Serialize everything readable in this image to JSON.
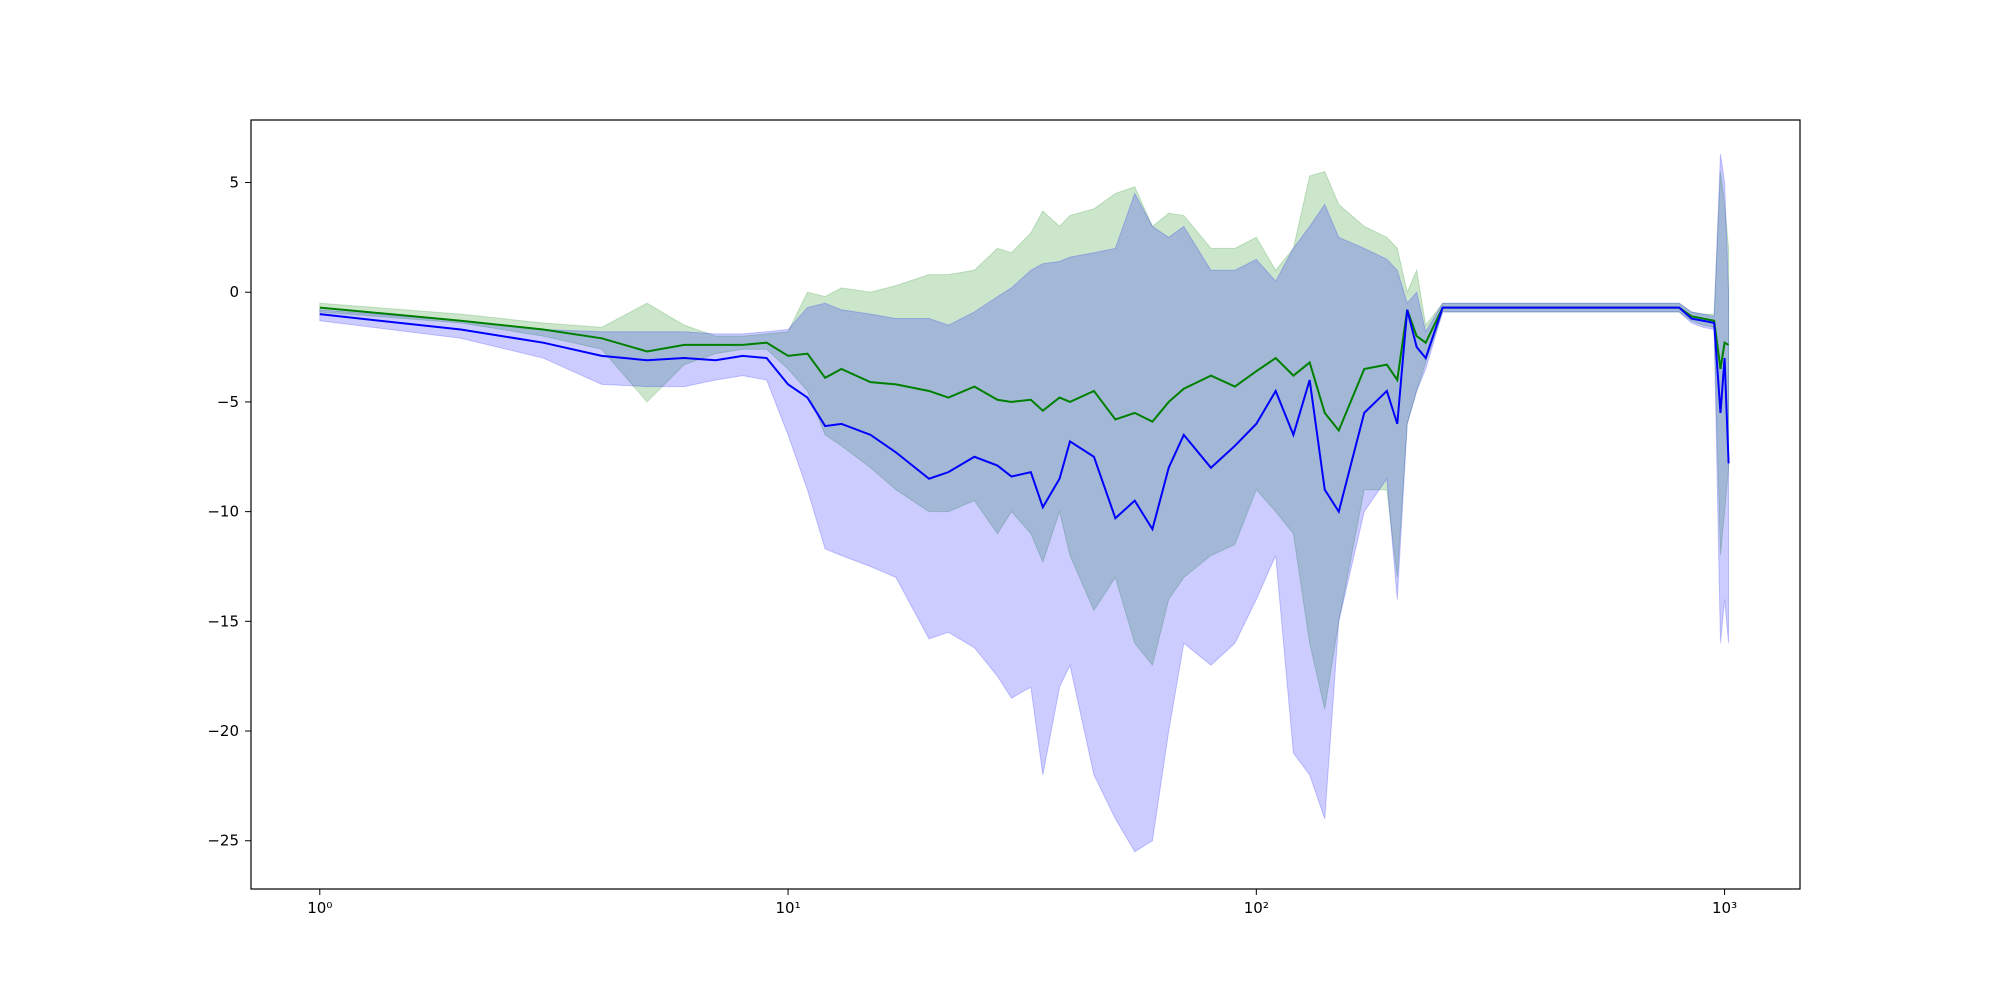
{
  "chart_data": {
    "type": "line_band",
    "x": [
      1,
      2,
      3,
      4,
      5,
      6,
      7,
      8,
      9,
      10,
      11,
      12,
      13,
      15,
      17,
      20,
      22,
      25,
      28,
      30,
      33,
      35,
      38,
      40,
      45,
      50,
      55,
      60,
      65,
      70,
      80,
      90,
      100,
      110,
      120,
      130,
      140,
      150,
      170,
      190,
      200,
      210,
      220,
      230,
      250,
      300,
      400,
      500,
      600,
      700,
      800,
      850,
      900,
      950,
      980,
      1000,
      1020
    ],
    "series": [
      {
        "color": "#008000",
        "values": [
          -0.7,
          -1.3,
          -1.7,
          -2.1,
          -2.7,
          -2.4,
          -2.4,
          -2.4,
          -2.3,
          -2.9,
          -2.8,
          -3.9,
          -3.5,
          -4.1,
          -4.2,
          -4.5,
          -4.8,
          -4.3,
          -4.9,
          -5.0,
          -4.9,
          -5.4,
          -4.8,
          -5.0,
          -4.5,
          -5.8,
          -5.5,
          -5.9,
          -5.0,
          -4.4,
          -3.8,
          -4.3,
          -3.6,
          -3.0,
          -3.8,
          -3.2,
          -5.5,
          -6.3,
          -3.5,
          -3.3,
          -4.0,
          -0.8,
          -2.0,
          -2.3,
          -0.7,
          -0.7,
          -0.7,
          -0.7,
          -0.7,
          -0.7,
          -0.7,
          -1.1,
          -1.2,
          -1.3,
          -3.5,
          -2.3,
          -2.4
        ],
        "lower": [
          -0.9,
          -1.4,
          -2.0,
          -2.6,
          -5.0,
          -3.3,
          -2.8,
          -2.6,
          -2.6,
          -3.5,
          -4.5,
          -6.5,
          -7.0,
          -8.0,
          -9.0,
          -10.0,
          -10.0,
          -9.5,
          -11.0,
          -10.0,
          -11.0,
          -12.3,
          -10.0,
          -12.0,
          -14.5,
          -13.0,
          -16.0,
          -17.0,
          -14.0,
          -13.0,
          -12.0,
          -11.5,
          -9.0,
          -10.0,
          -11.0,
          -16.0,
          -19.0,
          -15.0,
          -9.0,
          -9.0,
          -13.0,
          -6.0,
          -4.5,
          -3.2,
          -0.9,
          -0.9,
          -0.9,
          -0.9,
          -0.9,
          -0.9,
          -0.9,
          -1.3,
          -1.5,
          -1.6,
          -12.0,
          -10.0,
          -8.0
        ],
        "upper": [
          -0.5,
          -1.0,
          -1.4,
          -1.6,
          -0.5,
          -1.5,
          -2.0,
          -2.0,
          -1.9,
          -1.8,
          0.0,
          -0.2,
          0.2,
          0.0,
          0.3,
          0.8,
          0.8,
          1.0,
          2.0,
          1.8,
          2.7,
          3.7,
          3.0,
          3.5,
          3.8,
          4.5,
          4.8,
          3.0,
          3.6,
          3.5,
          2.0,
          2.0,
          2.5,
          1.0,
          2.0,
          5.3,
          5.5,
          4.0,
          3.0,
          2.5,
          2.0,
          0.0,
          1.0,
          -1.5,
          -0.5,
          -0.5,
          -0.5,
          -0.5,
          -0.5,
          -0.5,
          -0.5,
          -0.9,
          -1.0,
          -1.0,
          5.5,
          4.0,
          2.0
        ]
      },
      {
        "color": "#0000ff",
        "values": [
          -1.0,
          -1.7,
          -2.3,
          -2.9,
          -3.1,
          -3.0,
          -3.1,
          -2.9,
          -3.0,
          -4.2,
          -4.8,
          -6.1,
          -6.0,
          -6.5,
          -7.3,
          -8.5,
          -8.2,
          -7.5,
          -7.9,
          -8.4,
          -8.2,
          -9.8,
          -8.5,
          -6.8,
          -7.5,
          -10.3,
          -9.5,
          -10.8,
          -8.0,
          -6.5,
          -8.0,
          -7.0,
          -6.0,
          -4.5,
          -6.5,
          -4.0,
          -9.0,
          -10.0,
          -5.5,
          -4.5,
          -6.0,
          -0.8,
          -2.5,
          -3.0,
          -0.7,
          -0.7,
          -0.7,
          -0.7,
          -0.7,
          -0.7,
          -0.7,
          -1.2,
          -1.3,
          -1.4,
          -5.5,
          -3.0,
          -7.8
        ],
        "lower": [
          -1.3,
          -2.1,
          -3.0,
          -4.2,
          -4.3,
          -4.3,
          -4.0,
          -3.8,
          -4.0,
          -6.5,
          -9.0,
          -11.7,
          -12.0,
          -12.5,
          -13.0,
          -15.8,
          -15.5,
          -16.2,
          -17.5,
          -18.5,
          -18.0,
          -22.0,
          -18.0,
          -17.0,
          -22.0,
          -24.0,
          -25.5,
          -25.0,
          -20.0,
          -16.0,
          -17.0,
          -16.0,
          -14.0,
          -12.0,
          -21.0,
          -22.0,
          -24.0,
          -15.0,
          -10.0,
          -8.5,
          -14.0,
          -6.0,
          -4.5,
          -3.5,
          -0.9,
          -0.9,
          -0.9,
          -0.9,
          -0.9,
          -0.9,
          -0.9,
          -1.4,
          -1.6,
          -1.7,
          -16.0,
          -14.0,
          -16.0
        ],
        "upper": [
          -0.8,
          -1.3,
          -1.7,
          -1.8,
          -1.8,
          -1.8,
          -1.9,
          -1.9,
          -1.8,
          -1.7,
          -0.7,
          -0.5,
          -0.8,
          -1.0,
          -1.2,
          -1.2,
          -1.5,
          -0.9,
          -0.2,
          0.2,
          1.0,
          1.3,
          1.4,
          1.6,
          1.8,
          2.0,
          4.5,
          3.0,
          2.5,
          3.0,
          1.0,
          1.0,
          1.5,
          0.5,
          2.0,
          3.0,
          4.0,
          2.5,
          2.0,
          1.5,
          1.0,
          -0.5,
          0.0,
          -1.8,
          -0.5,
          -0.5,
          -0.5,
          -0.5,
          -0.5,
          -0.5,
          -0.5,
          -0.9,
          -1.0,
          -1.1,
          6.3,
          5.0,
          0.0
        ]
      }
    ],
    "xscale": "log",
    "xlim": [
      0.713,
      1449
    ],
    "ylim": [
      -27.2,
      7.85
    ],
    "xticks": [
      {
        "value": 1,
        "label": "10⁰"
      },
      {
        "value": 10,
        "label": "10¹"
      },
      {
        "value": 100,
        "label": "10²"
      },
      {
        "value": 1000,
        "label": "10³"
      }
    ],
    "yticks": [
      {
        "value": -25,
        "label": "−25"
      },
      {
        "value": -20,
        "label": "−20"
      },
      {
        "value": -15,
        "label": "−15"
      },
      {
        "value": -10,
        "label": "−10"
      },
      {
        "value": -5,
        "label": "−5"
      },
      {
        "value": 0,
        "label": "0"
      },
      {
        "value": 5,
        "label": "5"
      }
    ],
    "band_opacity": 0.2
  }
}
